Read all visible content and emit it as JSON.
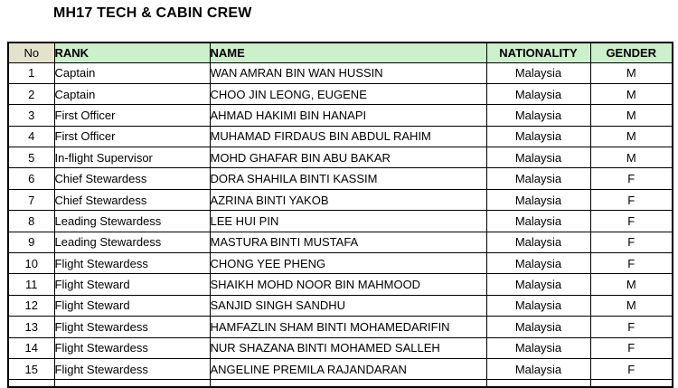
{
  "title": "MH17 TECH & CABIN CREW",
  "colors": {
    "header_green": "#ccefcc",
    "no_header_beige": "#e3e3cd",
    "border": "#000000",
    "text": "#000000"
  },
  "table": {
    "columns": [
      {
        "key": "no",
        "label": "No"
      },
      {
        "key": "rank",
        "label": "RANK"
      },
      {
        "key": "name",
        "label": "NAME"
      },
      {
        "key": "nationality",
        "label": "NATIONALITY"
      },
      {
        "key": "gender",
        "label": "GENDER"
      }
    ],
    "rows": [
      {
        "no": "1",
        "rank": "Captain",
        "name": "WAN AMRAN BIN WAN HUSSIN",
        "nationality": "Malaysia",
        "gender": "M"
      },
      {
        "no": "2",
        "rank": "Captain",
        "name": "CHOO JIN LEONG, EUGENE",
        "nationality": "Malaysia",
        "gender": "M"
      },
      {
        "no": "3",
        "rank": "First Officer",
        "name": "AHMAD HAKIMI BIN HANAPI",
        "nationality": "Malaysia",
        "gender": "M"
      },
      {
        "no": "4",
        "rank": "First Officer",
        "name": "MUHAMAD FIRDAUS BIN ABDUL RAHIM",
        "nationality": "Malaysia",
        "gender": "M"
      },
      {
        "no": "5",
        "rank": "In-flight Supervisor",
        "name": "MOHD GHAFAR BIN ABU BAKAR",
        "nationality": "Malaysia",
        "gender": "M"
      },
      {
        "no": "6",
        "rank": "Chief Stewardess",
        "name": "DORA SHAHILA BINTI KASSIM",
        "nationality": "Malaysia",
        "gender": "F"
      },
      {
        "no": "7",
        "rank": "Chief Stewardess",
        "name": "AZRINA BINTI YAKOB",
        "nationality": "Malaysia",
        "gender": "F"
      },
      {
        "no": "8",
        "rank": "Leading Stewardess",
        "name": "LEE HUI PIN",
        "nationality": "Malaysia",
        "gender": "F"
      },
      {
        "no": "9",
        "rank": "Leading Stewardess",
        "name": "MASTURA BINTI MUSTAFA",
        "nationality": "Malaysia",
        "gender": "F"
      },
      {
        "no": "10",
        "rank": "Flight Stewardess",
        "name": "CHONG YEE PHENG",
        "nationality": "Malaysia",
        "gender": "F"
      },
      {
        "no": "11",
        "rank": "Flight Steward",
        "name": "SHAIKH MOHD NOOR BIN MAHMOOD",
        "nationality": "Malaysia",
        "gender": "M"
      },
      {
        "no": "12",
        "rank": "Flight Steward",
        "name": "SANJID SINGH SANDHU",
        "nationality": "Malaysia",
        "gender": "M"
      },
      {
        "no": "13",
        "rank": "Flight Stewardess",
        "name": "HAMFAZLIN SHAM BINTI MOHAMEDARIFIN",
        "nationality": "Malaysia",
        "gender": "F"
      },
      {
        "no": "14",
        "rank": "Flight Stewardess",
        "name": "NUR SHAZANA BINTI MOHAMED SALLEH",
        "nationality": "Malaysia",
        "gender": "F"
      },
      {
        "no": "15",
        "rank": "Flight Stewardess",
        "name": "ANGELINE PREMILA RAJANDARAN",
        "nationality": "Malaysia",
        "gender": "F"
      }
    ]
  }
}
